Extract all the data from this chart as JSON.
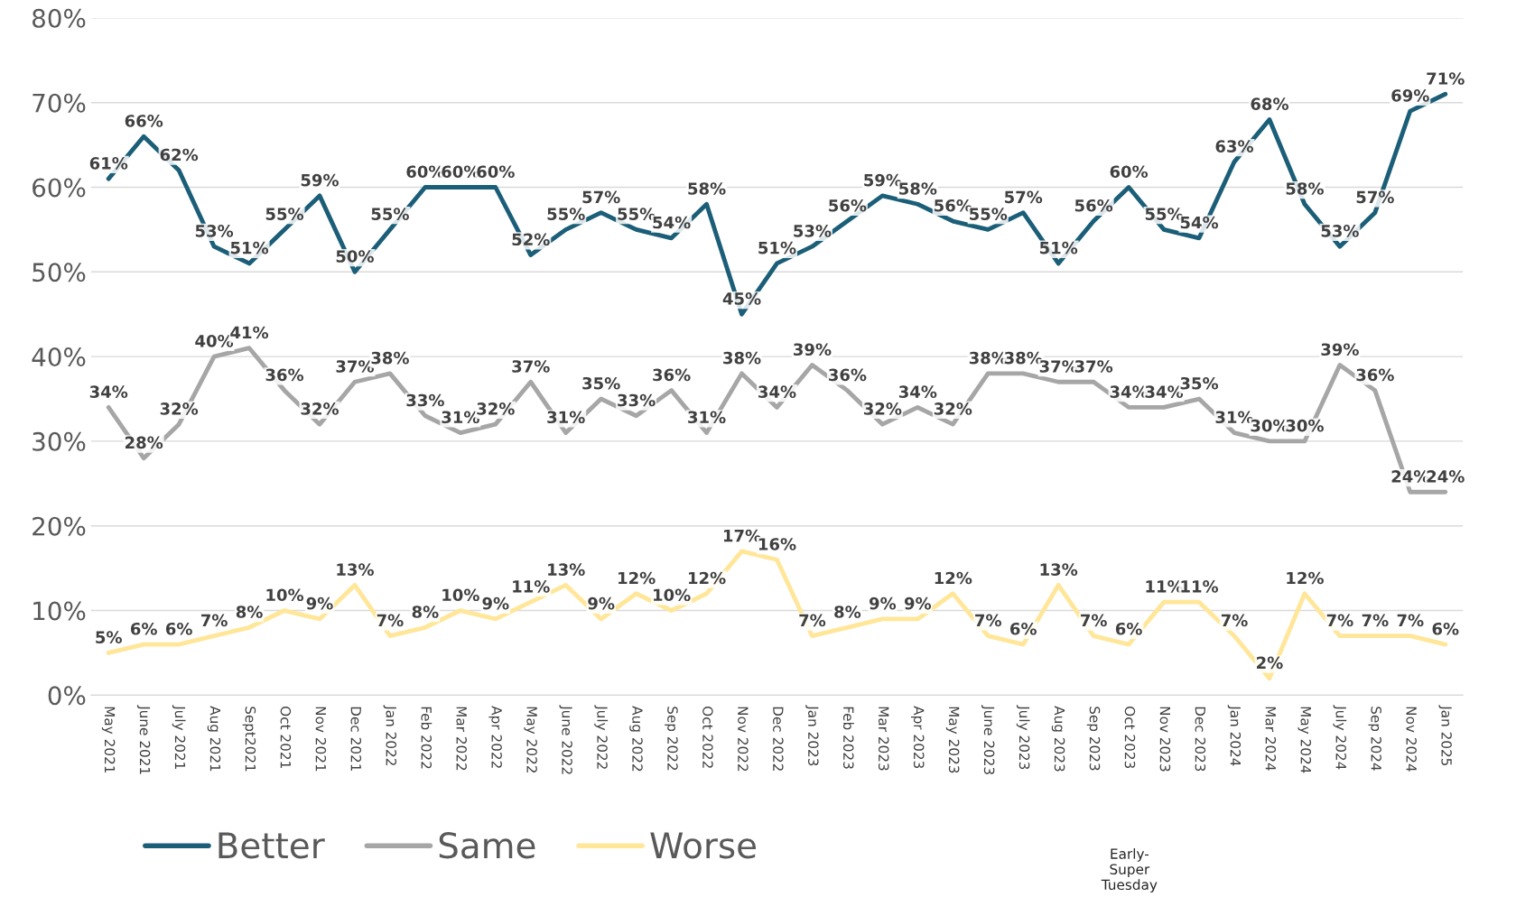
{
  "chart_data": {
    "type": "line",
    "categories": [
      "May 2021",
      "June 2021",
      "July 2021",
      "Aug 2021",
      "Sept2021",
      "Oct 2021",
      "Nov 2021",
      "Dec 2021",
      "Jan 2022",
      "Feb 2022",
      "Mar 2022",
      "Apr 2022",
      "May 2022",
      "June 2022",
      "July 2022",
      "Aug 2022",
      "Sep 2022",
      "Oct 2022",
      "Nov 2022",
      "Dec 2022",
      "Jan 2023",
      "Feb 2023",
      "Mar 2023",
      "Apr 2023",
      "May 2023",
      "June 2023",
      "July 2023",
      "Aug 2023",
      "Sep 2023",
      "Oct 2023",
      "Nov 2023",
      "Dec 2023",
      "Jan 2024",
      "Mar 2024",
      "May 2024",
      "July 2024",
      "Sep 2024",
      "Nov 2024",
      "Jan 2025"
    ],
    "series": [
      {
        "name": "Better",
        "color": "#1b5e78",
        "values": [
          61,
          66,
          62,
          53,
          51,
          55,
          59,
          50,
          55,
          60,
          60,
          60,
          52,
          55,
          57,
          55,
          54,
          58,
          45,
          51,
          53,
          56,
          59,
          58,
          56,
          55,
          57,
          51,
          56,
          60,
          55,
          54,
          63,
          68,
          58,
          53,
          57,
          69,
          71
        ],
        "value_labels": [
          "61%",
          "66%",
          "62%",
          "53%",
          "51%",
          "55%",
          "59%",
          "50%",
          "55%",
          "60%",
          "60%",
          "60%",
          "52%",
          "55%",
          "57%",
          "55%",
          "54%",
          "58%",
          "45%",
          "51%",
          "53%",
          "56%",
          "59%",
          "58%",
          "56%",
          "55%",
          "57%",
          "51%",
          "56%",
          "60%",
          "55%",
          "54%",
          "63%",
          "68%",
          "58%",
          "53%",
          "57%",
          "69%",
          "71%"
        ]
      },
      {
        "name": "Same",
        "color": "#a6a6a6",
        "values": [
          34,
          28,
          32,
          40,
          41,
          36,
          32,
          37,
          38,
          33,
          31,
          32,
          37,
          31,
          35,
          33,
          36,
          31,
          38,
          34,
          39,
          36,
          32,
          34,
          32,
          38,
          38,
          37,
          37,
          34,
          34,
          35,
          31,
          30,
          30,
          39,
          36,
          24,
          24
        ],
        "value_labels": [
          "34%",
          "28%",
          "32%",
          "40%",
          "41%",
          "36%",
          "32%",
          "37%",
          "38%",
          "33%",
          "31%",
          "32%",
          "37%",
          "31%",
          "35%",
          "33%",
          "36%",
          "31%",
          "38%",
          "34%",
          "39%",
          "36%",
          "32%",
          "34%",
          "32%",
          "38%",
          "38%",
          "37%",
          "37%",
          "34%",
          "34%",
          "35%",
          "31%",
          "30%",
          "30%",
          "39%",
          "36%",
          "24%",
          "24%"
        ]
      },
      {
        "name": "Worse",
        "color": "#ffe699",
        "values": [
          5,
          6,
          6,
          7,
          8,
          10,
          9,
          13,
          7,
          8,
          10,
          9,
          11,
          13,
          9,
          12,
          10,
          12,
          17,
          16,
          7,
          8,
          9,
          9,
          12,
          7,
          6,
          13,
          7,
          6,
          11,
          11,
          7,
          2,
          12,
          7,
          7,
          7,
          6
        ],
        "value_labels": [
          "5%",
          "6%",
          "6%",
          "7%",
          "8%",
          "10%",
          "9%",
          "13%",
          "7%",
          "8%",
          "10%",
          "9%",
          "11%",
          "13%",
          "9%",
          "12%",
          "10%",
          "12%",
          "17%",
          "16%",
          "7%",
          "8%",
          "9%",
          "9%",
          "12%",
          "7%",
          "6%",
          "13%",
          "7%",
          "6%",
          "11%",
          "11%",
          "7%",
          "2%",
          "12%",
          "7%",
          "7%",
          "7%",
          "6%"
        ]
      }
    ],
    "ylim": [
      0,
      80
    ],
    "yticks": [
      {
        "value": 0,
        "label": "0%"
      },
      {
        "value": 10,
        "label": "10%"
      },
      {
        "value": 20,
        "label": "20%"
      },
      {
        "value": 30,
        "label": "30%"
      },
      {
        "value": 40,
        "label": "40%"
      },
      {
        "value": 50,
        "label": "50%"
      },
      {
        "value": 60,
        "label": "60%"
      },
      {
        "value": 70,
        "label": "70%"
      },
      {
        "value": 80,
        "label": "80%"
      }
    ],
    "grid": "y",
    "legend": "bottom left",
    "line_style": "solid",
    "annotations": [
      "Early-\nSuper\nTuesday"
    ]
  }
}
